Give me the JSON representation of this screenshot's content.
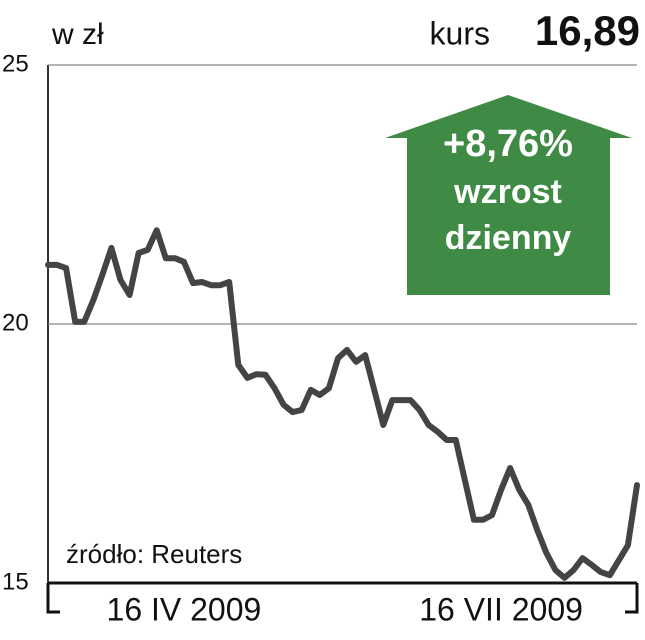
{
  "chart_data": {
    "type": "line",
    "unit_label": "w zł",
    "price_caption": "kurs",
    "price_label": "16,89",
    "badge": {
      "change": "+8,76%",
      "line1": "wzrost",
      "line2": "dzienny",
      "color": "#3f8a45"
    },
    "source": "źródło: Reuters",
    "categories": [
      null,
      null,
      null,
      null,
      null,
      null,
      null,
      null,
      null,
      null,
      null,
      null,
      null,
      null,
      null,
      "16 IV 2009",
      null,
      null,
      null,
      null,
      null,
      null,
      null,
      null,
      null,
      null,
      null,
      null,
      null,
      null,
      null,
      null,
      null,
      null,
      null,
      null,
      null,
      null,
      null,
      null,
      null,
      null,
      null,
      null,
      null,
      null,
      null,
      null,
      null,
      null,
      "16 VII 2009",
      null,
      null,
      null,
      null,
      null,
      null,
      null,
      null,
      null,
      null,
      null,
      null,
      null,
      null,
      null
    ],
    "series": [
      {
        "name": "kurs",
        "color": "#444444",
        "values": [
          21.14,
          21.14,
          21.08,
          20.04,
          20.04,
          20.46,
          20.95,
          21.47,
          20.85,
          20.56,
          21.37,
          21.43,
          21.81,
          21.27,
          21.27,
          21.2,
          20.79,
          20.81,
          20.75,
          20.75,
          20.81,
          19.21,
          18.96,
          19.03,
          19.02,
          18.76,
          18.44,
          18.3,
          18.34,
          18.73,
          18.63,
          18.76,
          19.34,
          19.5,
          19.27,
          19.4,
          18.73,
          18.05,
          18.53,
          18.53,
          18.53,
          18.34,
          18.05,
          17.92,
          17.76,
          17.76,
          16.99,
          16.22,
          16.22,
          16.31,
          16.8,
          17.22,
          16.8,
          16.51,
          16.02,
          15.58,
          15.25,
          15.1,
          15.25,
          15.48,
          15.35,
          15.21,
          15.15,
          15.44,
          15.73,
          16.89
        ]
      }
    ],
    "ylim": [
      15,
      25
    ],
    "yticks": [
      15,
      20,
      25
    ],
    "grid": true
  }
}
